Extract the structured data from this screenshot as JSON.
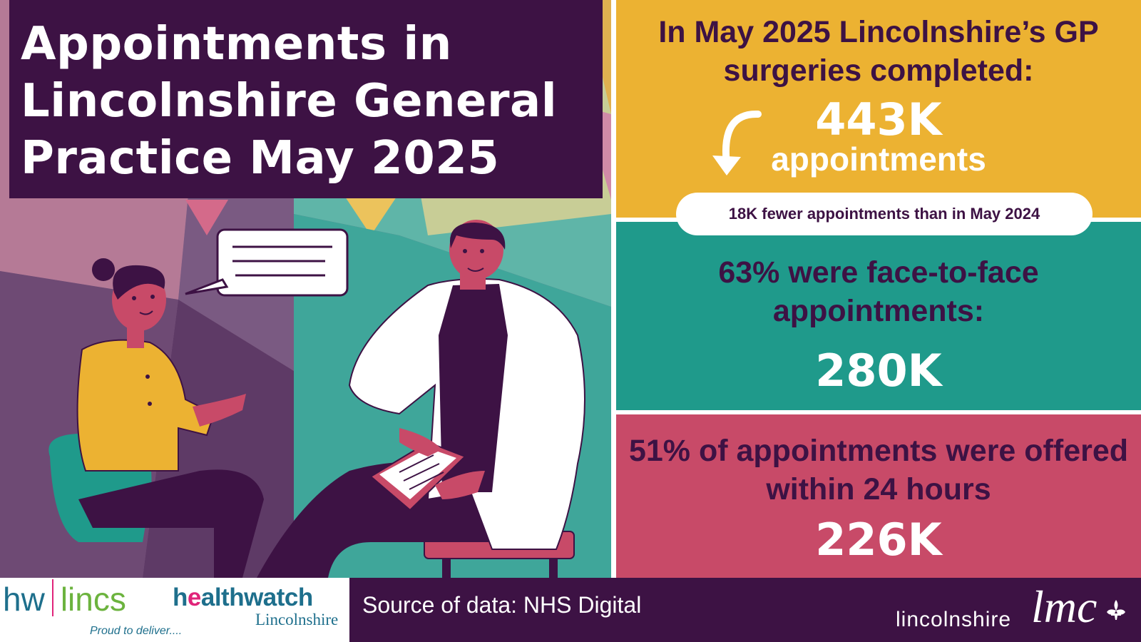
{
  "title": "Appointments in Lincolnshire General Practice May 2025",
  "panels": {
    "total": {
      "lead": "In May 2025 Lincolnshire’s GP surgeries completed:",
      "value": "443K",
      "unit": "appointments",
      "comparison": "18K fewer appointments than in May 2024"
    },
    "face_to_face": {
      "lead": "63% were face-to-face appointments:",
      "value": "280K"
    },
    "within_24h": {
      "lead": "51% of appointments were offered within 24 hours",
      "value": "226K"
    }
  },
  "footer": {
    "hw_short": "hw",
    "lincs": "lincs",
    "tagline": "Proud to deliver....",
    "healthwatch_pre": "h",
    "healthwatch_e": "e",
    "healthwatch_rest": "althwatch",
    "healthwatch_sub": "Lincolnshire",
    "source": "Source of data: NHS Digital",
    "lmc_prefix": "lincolnshire",
    "lmc_mark": "lmc"
  },
  "colors": {
    "purple": "#3d1244",
    "yellow": "#ecb232",
    "teal": "#1f9a8b",
    "pink": "#c84a68",
    "white": "#ffffff"
  },
  "icons": [
    "curved-arrow-icon",
    "speech-bubble-icon",
    "fleur-de-lis-icon"
  ]
}
